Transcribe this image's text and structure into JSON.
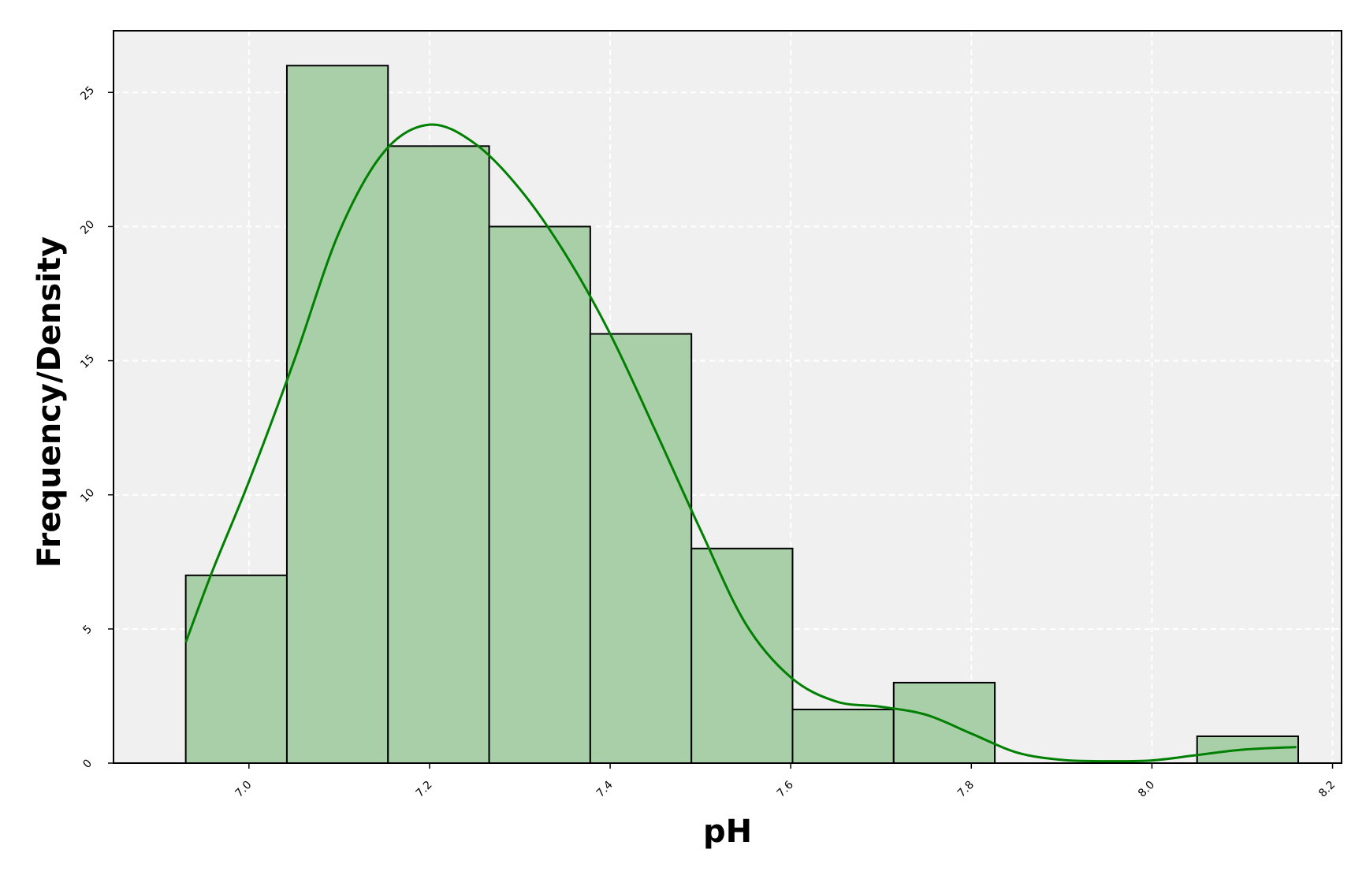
{
  "chart_data": {
    "type": "bar",
    "subtype": "histogram_with_kde",
    "title": "",
    "xlabel": "pH",
    "ylabel": "Frequency/Density",
    "xlim": [
      6.85,
      8.21
    ],
    "ylim": [
      0,
      27.3
    ],
    "xticks": [
      7.0,
      7.2,
      7.4,
      7.6,
      7.8,
      8.0,
      8.2
    ],
    "xtick_labels": [
      "7.0",
      "7.2",
      "7.4",
      "7.6",
      "7.8",
      "8.0",
      "8.2"
    ],
    "yticks": [
      0,
      5,
      10,
      15,
      20,
      25
    ],
    "ytick_labels": [
      "0",
      "5",
      "10",
      "15",
      "20",
      "25"
    ],
    "grid": true,
    "legend": "none",
    "bins": [
      {
        "x0": 6.93,
        "x1": 7.042,
        "count": 7
      },
      {
        "x0": 7.042,
        "x1": 7.154,
        "count": 26
      },
      {
        "x0": 7.154,
        "x1": 7.266,
        "count": 23
      },
      {
        "x0": 7.266,
        "x1": 7.378,
        "count": 20
      },
      {
        "x0": 7.378,
        "x1": 7.49,
        "count": 16
      },
      {
        "x0": 7.49,
        "x1": 7.602,
        "count": 8
      },
      {
        "x0": 7.602,
        "x1": 7.714,
        "count": 2
      },
      {
        "x0": 7.714,
        "x1": 7.826,
        "count": 3
      },
      {
        "x0": 7.826,
        "x1": 7.938,
        "count": 0
      },
      {
        "x0": 7.938,
        "x1": 8.05,
        "count": 0
      },
      {
        "x0": 8.05,
        "x1": 8.162,
        "count": 1
      }
    ],
    "kde": {
      "x": [
        6.93,
        6.96,
        7.0,
        7.05,
        7.1,
        7.15,
        7.2,
        7.25,
        7.3,
        7.35,
        7.4,
        7.45,
        7.5,
        7.55,
        7.6,
        7.65,
        7.7,
        7.75,
        7.8,
        7.85,
        7.9,
        7.95,
        8.0,
        8.05,
        8.1,
        8.16
      ],
      "y": [
        4.5,
        7.2,
        10.5,
        15.0,
        19.8,
        22.8,
        23.8,
        23.1,
        21.4,
        19.0,
        16.0,
        12.4,
        8.7,
        5.2,
        3.2,
        2.3,
        2.1,
        1.8,
        1.1,
        0.4,
        0.12,
        0.07,
        0.1,
        0.3,
        0.5,
        0.6
      ]
    },
    "colors": {
      "bar_fill": "#a9cfa8",
      "bar_edge": "#000000",
      "kde_line": "#008000",
      "plot_background": "#f0f0f0",
      "grid": "#ffffff"
    }
  }
}
